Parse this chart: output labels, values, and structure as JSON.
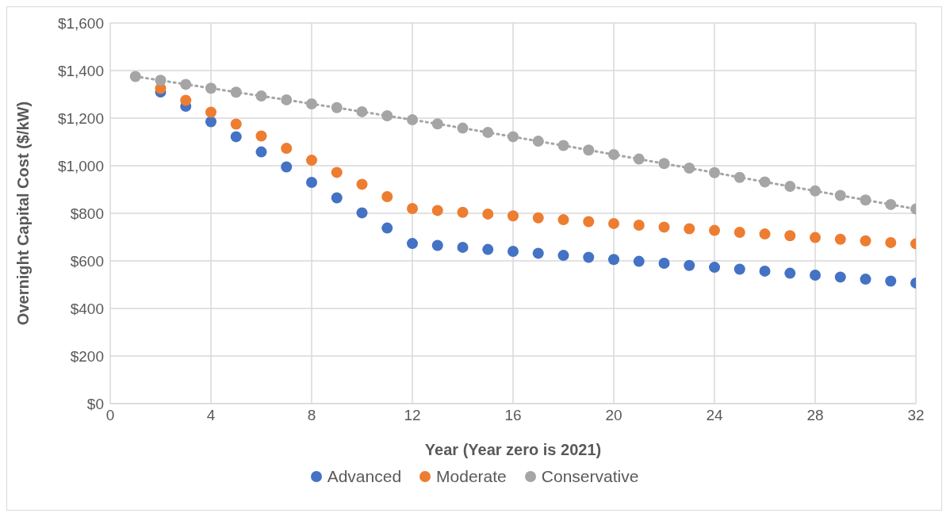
{
  "chart_data": {
    "type": "scatter",
    "xlabel": "Year (Year zero is 2021)",
    "ylabel": "Overnight Capital Cost ($/kW)",
    "x": [
      1,
      2,
      3,
      4,
      5,
      6,
      7,
      8,
      9,
      10,
      11,
      12,
      13,
      14,
      15,
      16,
      17,
      18,
      19,
      20,
      21,
      22,
      23,
      24,
      25,
      26,
      27,
      28,
      29,
      30,
      31,
      32
    ],
    "series": [
      {
        "name": "Advanced",
        "color": "#4472c4",
        "values": [
          null,
          1310,
          1250,
          1185,
          1122,
          1058,
          995,
          930,
          865,
          802,
          738,
          673,
          665,
          657,
          648,
          640,
          632,
          623,
          615,
          606,
          598,
          590,
          581,
          573,
          565,
          557,
          548,
          540,
          532,
          523,
          515,
          507
        ]
      },
      {
        "name": "Moderate",
        "color": "#ed7d31",
        "values": [
          null,
          1325,
          1275,
          1225,
          1175,
          1125,
          1073,
          1023,
          972,
          922,
          870,
          820,
          812,
          804,
          797,
          789,
          781,
          773,
          765,
          757,
          750,
          742,
          735,
          728,
          720,
          713,
          706,
          698,
          691,
          684,
          677,
          672
        ]
      },
      {
        "name": "Conservative",
        "type": "line",
        "line_style": "dotted",
        "color": "#a5a5a5",
        "values": [
          1375,
          1359,
          1342,
          1326,
          1309,
          1293,
          1277,
          1260,
          1244,
          1227,
          1210,
          1193,
          1176,
          1158,
          1140,
          1122,
          1103,
          1085,
          1066,
          1047,
          1028,
          1009,
          990,
          971,
          951,
          932,
          913,
          894,
          875,
          856,
          837,
          818
        ]
      }
    ],
    "marker": "circle",
    "xlim": [
      0,
      32
    ],
    "xticks": [
      0,
      4,
      8,
      12,
      16,
      20,
      24,
      28,
      32
    ],
    "ylim": [
      0,
      1600
    ],
    "yticks": [
      {
        "value": 0,
        "label": "$0"
      },
      {
        "value": 200,
        "label": "$200"
      },
      {
        "value": 400,
        "label": "$400"
      },
      {
        "value": 600,
        "label": "$600"
      },
      {
        "value": 800,
        "label": "$800"
      },
      {
        "value": 1000,
        "label": "$1,000"
      },
      {
        "value": 1200,
        "label": "$1,200"
      },
      {
        "value": 1400,
        "label": "$1,400"
      },
      {
        "value": 1600,
        "label": "$1,600"
      }
    ],
    "grid": true,
    "legend": "bottom"
  }
}
